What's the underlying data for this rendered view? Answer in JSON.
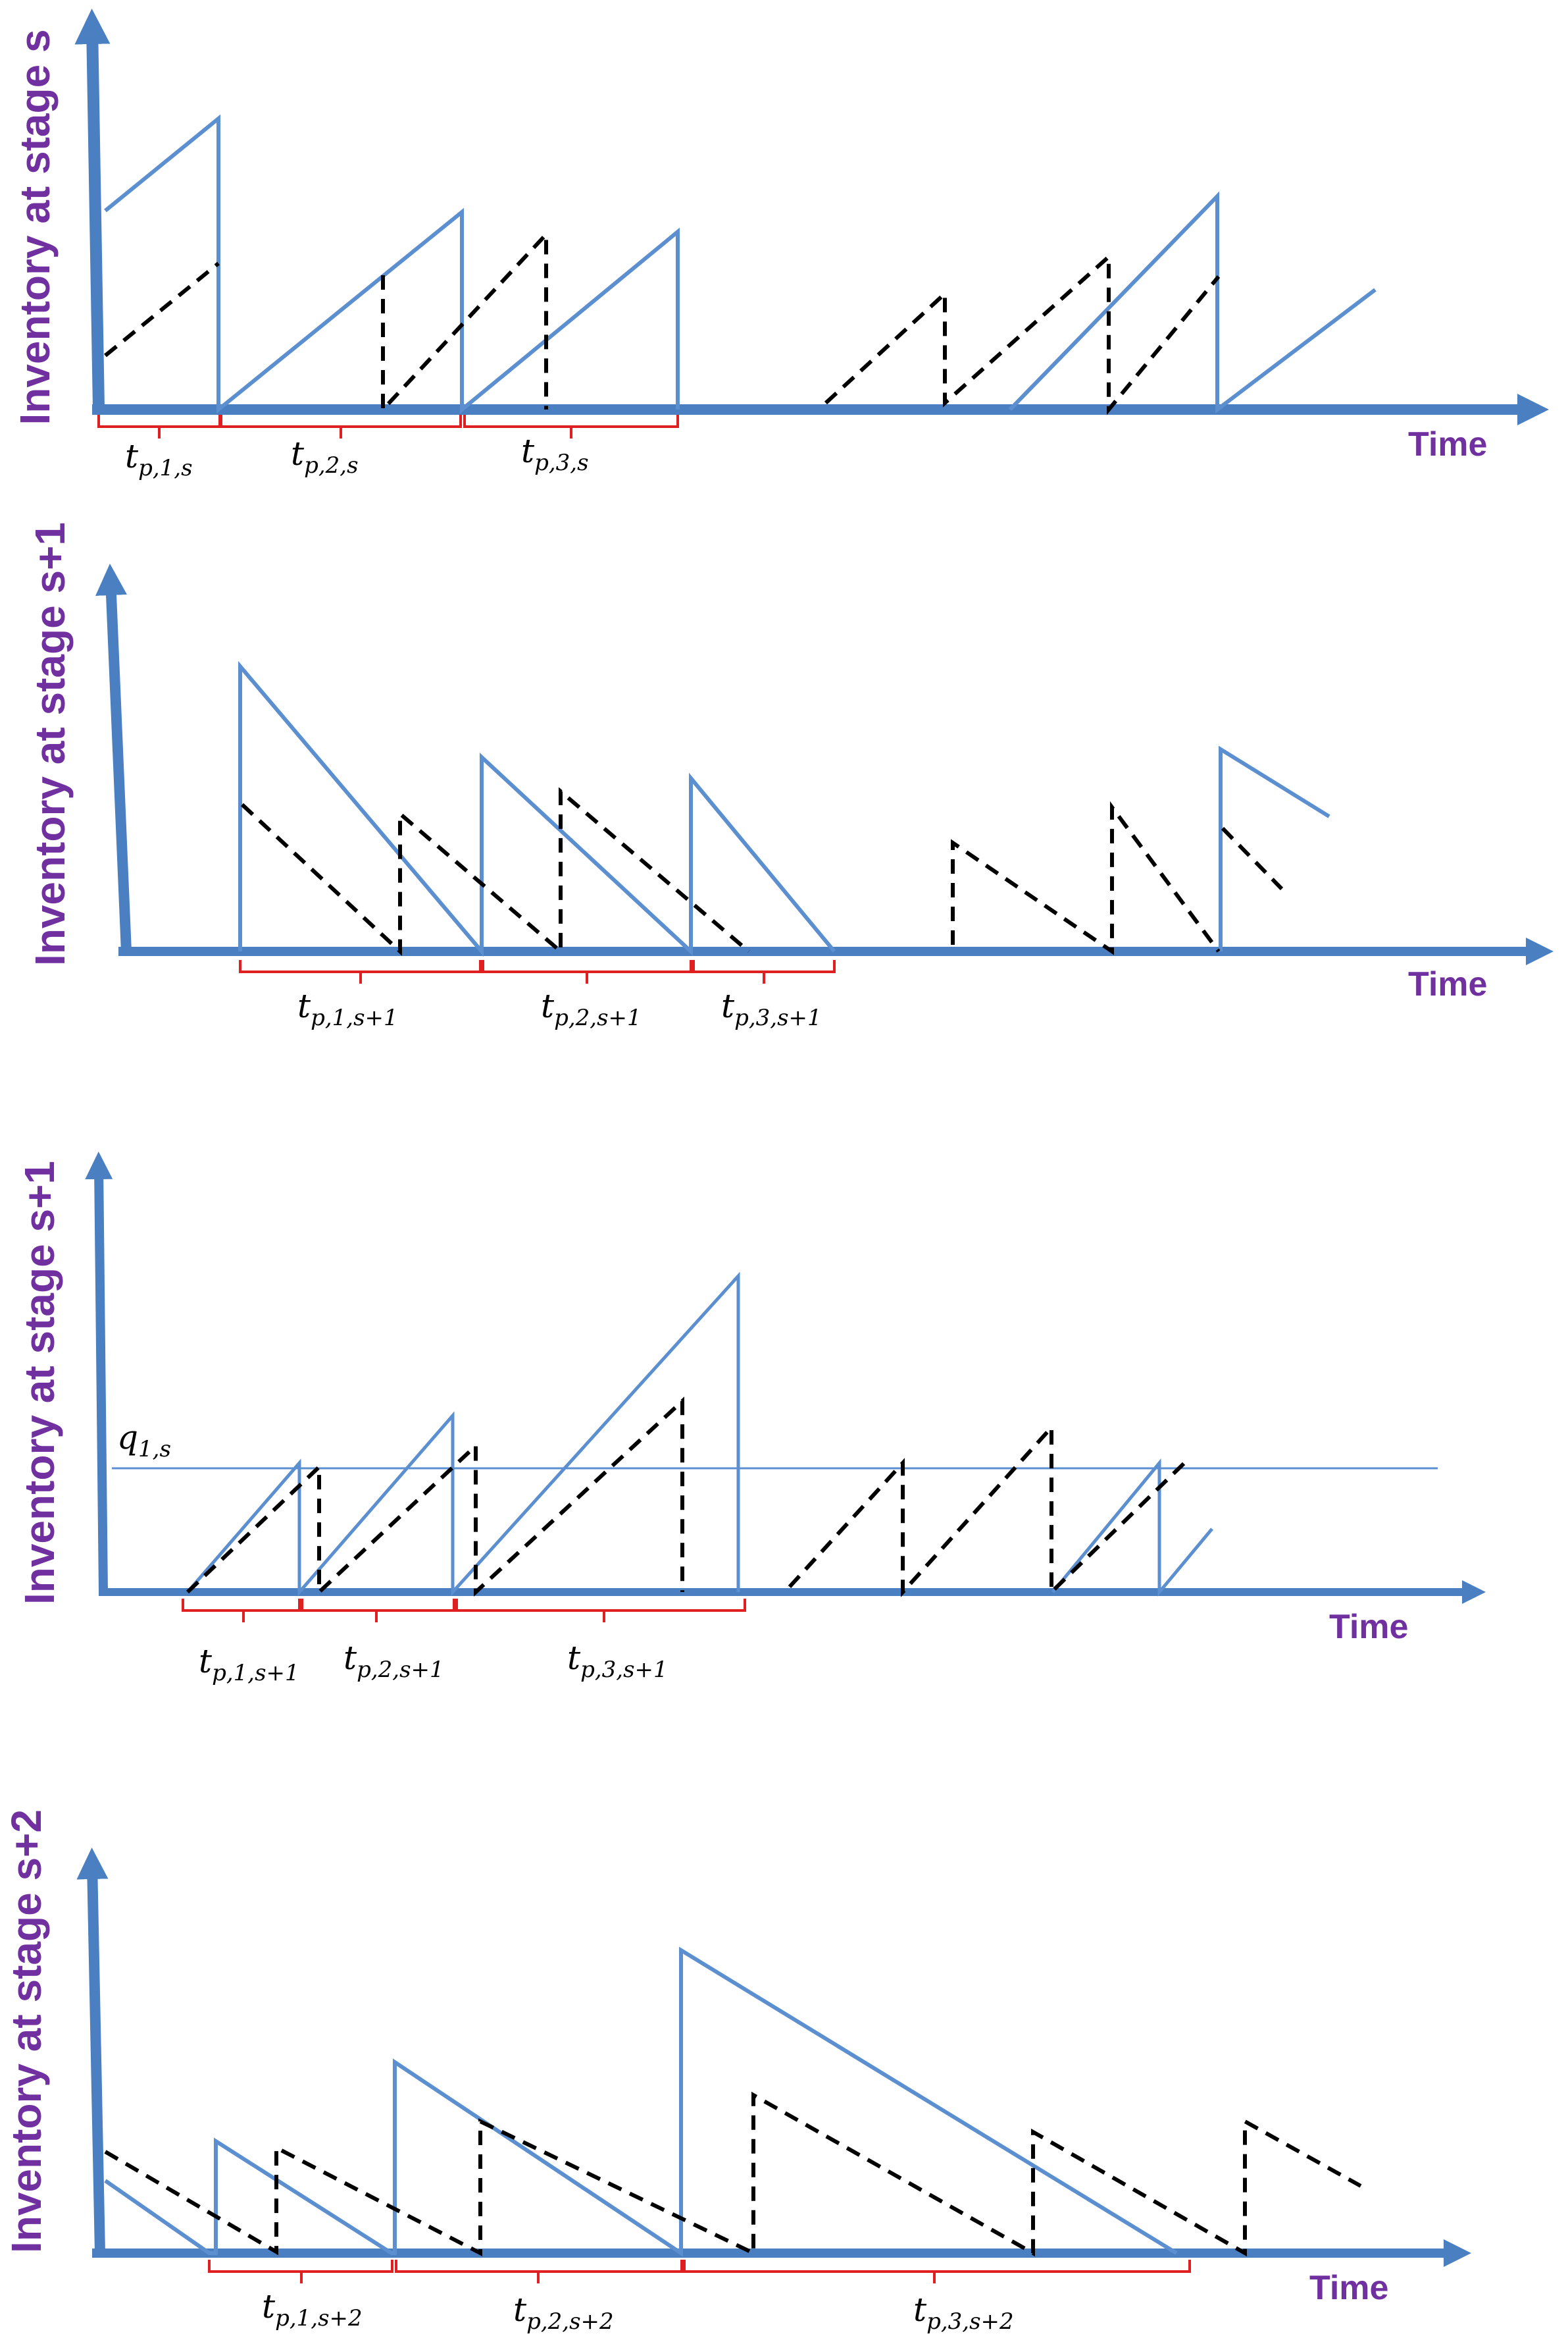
{
  "colors": {
    "axis": "#4a7fc1",
    "solid": "#5b8fd0",
    "dashed": "#000000",
    "brace": "#e02020",
    "label": "#7030a0"
  },
  "time_label": "Time",
  "panels": [
    {
      "ylabel": "Inventory at stage s",
      "periods": [
        {
          "t": "t",
          "sub": "p,1,s"
        },
        {
          "t": "t",
          "sub": "p,2,s"
        },
        {
          "t": "t",
          "sub": "p,3,s"
        }
      ]
    },
    {
      "ylabel": "Inventory at stage s+1",
      "periods": [
        {
          "t": "t",
          "sub": "p,1,s+1"
        },
        {
          "t": "t",
          "sub": "p,2,s+1"
        },
        {
          "t": "t",
          "sub": "p,3,s+1"
        }
      ]
    },
    {
      "ylabel": "Inventory at stage s+1",
      "reference": {
        "t": "q",
        "sub": "1,s"
      },
      "periods": [
        {
          "t": "t",
          "sub": "p,1,s+1"
        },
        {
          "t": "t",
          "sub": "p,2,s+1"
        },
        {
          "t": "t",
          "sub": "p,3,s+1"
        }
      ]
    },
    {
      "ylabel": "Inventory at stage s+2",
      "periods": [
        {
          "t": "t",
          "sub": "p,1,s+2"
        },
        {
          "t": "t",
          "sub": "p,2,s+2"
        },
        {
          "t": "t",
          "sub": "p,3,s+2"
        }
      ]
    }
  ]
}
